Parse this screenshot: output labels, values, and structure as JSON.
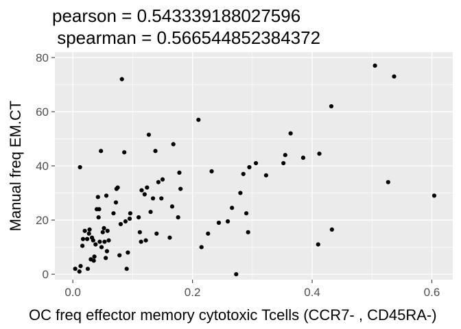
{
  "chart_data": {
    "type": "scatter",
    "title_lines": [
      "pearson = 0.543339188027596",
      " spearman = 0.566544852384372"
    ],
    "xlabel": "OC freq effector memory cytotoxic Tcells (CCR7- , CD45RA-)",
    "ylabel": "Manual freq EM.CT",
    "xlim": [
      -0.03,
      0.635
    ],
    "ylim": [
      -2,
      82
    ],
    "x_ticks": [
      0.0,
      0.2,
      0.4,
      0.6
    ],
    "x_tick_labels": [
      "0.0",
      "0.2",
      "0.4",
      "0.6"
    ],
    "y_ticks": [
      0,
      20,
      40,
      60,
      80
    ],
    "y_tick_labels": [
      "0",
      "20",
      "40",
      "60",
      "80"
    ],
    "grid": true,
    "colors": {
      "panel": "#ebebeb",
      "grid_major": "#ffffff",
      "point": "#000000",
      "tick": "#333333"
    },
    "points": [
      [
        0.004,
        2
      ],
      [
        0.011,
        1
      ],
      [
        0.013,
        3
      ],
      [
        0.012,
        39.5
      ],
      [
        0.017,
        13
      ],
      [
        0.016,
        10.5
      ],
      [
        0.02,
        16
      ],
      [
        0.024,
        13
      ],
      [
        0.027,
        15
      ],
      [
        0.028,
        16.5
      ],
      [
        0.025,
        2
      ],
      [
        0.03,
        5.5
      ],
      [
        0.032,
        13.5
      ],
      [
        0.034,
        12.5
      ],
      [
        0.035,
        5
      ],
      [
        0.036,
        6.5
      ],
      [
        0.038,
        11
      ],
      [
        0.04,
        24
      ],
      [
        0.042,
        28.5
      ],
      [
        0.043,
        21
      ],
      [
        0.044,
        24
      ],
      [
        0.045,
        12
      ],
      [
        0.047,
        45.5
      ],
      [
        0.048,
        10
      ],
      [
        0.05,
        15.5
      ],
      [
        0.052,
        17
      ],
      [
        0.053,
        12
      ],
      [
        0.055,
        6
      ],
      [
        0.056,
        29
      ],
      [
        0.057,
        8.5
      ],
      [
        0.058,
        16
      ],
      [
        0.06,
        12.5
      ],
      [
        0.068,
        22.5
      ],
      [
        0.072,
        26.5
      ],
      [
        0.073,
        31.5
      ],
      [
        0.075,
        32
      ],
      [
        0.078,
        7
      ],
      [
        0.08,
        18.5
      ],
      [
        0.082,
        72
      ],
      [
        0.086,
        45
      ],
      [
        0.088,
        19.5
      ],
      [
        0.09,
        2
      ],
      [
        0.092,
        8
      ],
      [
        0.095,
        20.5
      ],
      [
        0.096,
        22.5
      ],
      [
        0.11,
        21
      ],
      [
        0.112,
        15.5
      ],
      [
        0.114,
        12
      ],
      [
        0.115,
        31
      ],
      [
        0.12,
        29.5
      ],
      [
        0.122,
        12.5
      ],
      [
        0.124,
        32
      ],
      [
        0.127,
        51.5
      ],
      [
        0.13,
        23
      ],
      [
        0.134,
        28
      ],
      [
        0.138,
        45.5
      ],
      [
        0.14,
        15
      ],
      [
        0.143,
        34
      ],
      [
        0.148,
        28
      ],
      [
        0.15,
        35
      ],
      [
        0.162,
        13.5
      ],
      [
        0.166,
        25
      ],
      [
        0.168,
        48
      ],
      [
        0.176,
        21
      ],
      [
        0.178,
        37.5
      ],
      [
        0.18,
        31.5
      ],
      [
        0.21,
        57
      ],
      [
        0.215,
        10
      ],
      [
        0.226,
        15
      ],
      [
        0.232,
        38
      ],
      [
        0.244,
        19
      ],
      [
        0.259,
        19.5
      ],
      [
        0.266,
        24.5
      ],
      [
        0.273,
        0
      ],
      [
        0.28,
        30
      ],
      [
        0.285,
        37
      ],
      [
        0.29,
        22.5
      ],
      [
        0.293,
        15.5
      ],
      [
        0.295,
        39.5
      ],
      [
        0.306,
        41
      ],
      [
        0.323,
        36.5
      ],
      [
        0.352,
        41
      ],
      [
        0.355,
        44
      ],
      [
        0.364,
        52
      ],
      [
        0.385,
        43
      ],
      [
        0.41,
        11
      ],
      [
        0.412,
        44.5
      ],
      [
        0.432,
        62
      ],
      [
        0.433,
        16.5
      ],
      [
        0.505,
        77
      ],
      [
        0.527,
        34
      ],
      [
        0.537,
        73
      ],
      [
        0.604,
        29
      ]
    ]
  }
}
